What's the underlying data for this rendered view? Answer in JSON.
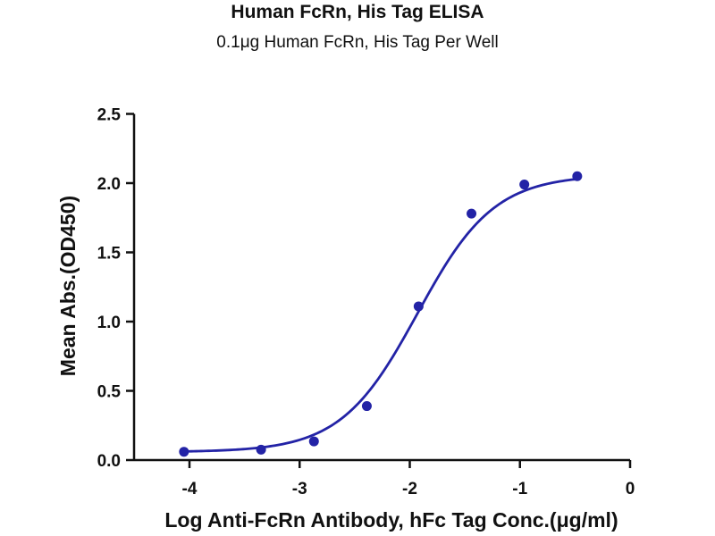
{
  "chart_data": {
    "type": "line",
    "title": "Human FcRn, His Tag ELISA",
    "subtitle": "0.1μg Human FcRn, His Tag Per Well",
    "xlabel": "Log Anti-FcRn Antibody, hFc Tag Conc.(μg/ml)",
    "ylabel": "Mean Abs.(OD450)",
    "xlim": [
      -4.5,
      0
    ],
    "ylim": [
      0,
      2.5
    ],
    "x_ticks": [
      -4,
      -3,
      -2,
      -1,
      0
    ],
    "x_tick_labels": [
      "-4",
      "-3",
      "-2",
      "-1",
      "0"
    ],
    "y_ticks": [
      0.0,
      0.5,
      1.0,
      1.5,
      2.0,
      2.5
    ],
    "y_tick_labels": [
      "0.0",
      "0.5",
      "1.0",
      "1.5",
      "2.0",
      "2.5"
    ],
    "grid": false,
    "series": [
      {
        "x": [
          -4.05,
          -3.35,
          -2.87,
          -2.39,
          -1.92,
          -1.44,
          -0.96,
          -0.48
        ],
        "y": [
          0.06,
          0.075,
          0.135,
          0.39,
          1.11,
          1.78,
          1.99,
          2.05
        ],
        "color": "#2323a6"
      }
    ]
  }
}
